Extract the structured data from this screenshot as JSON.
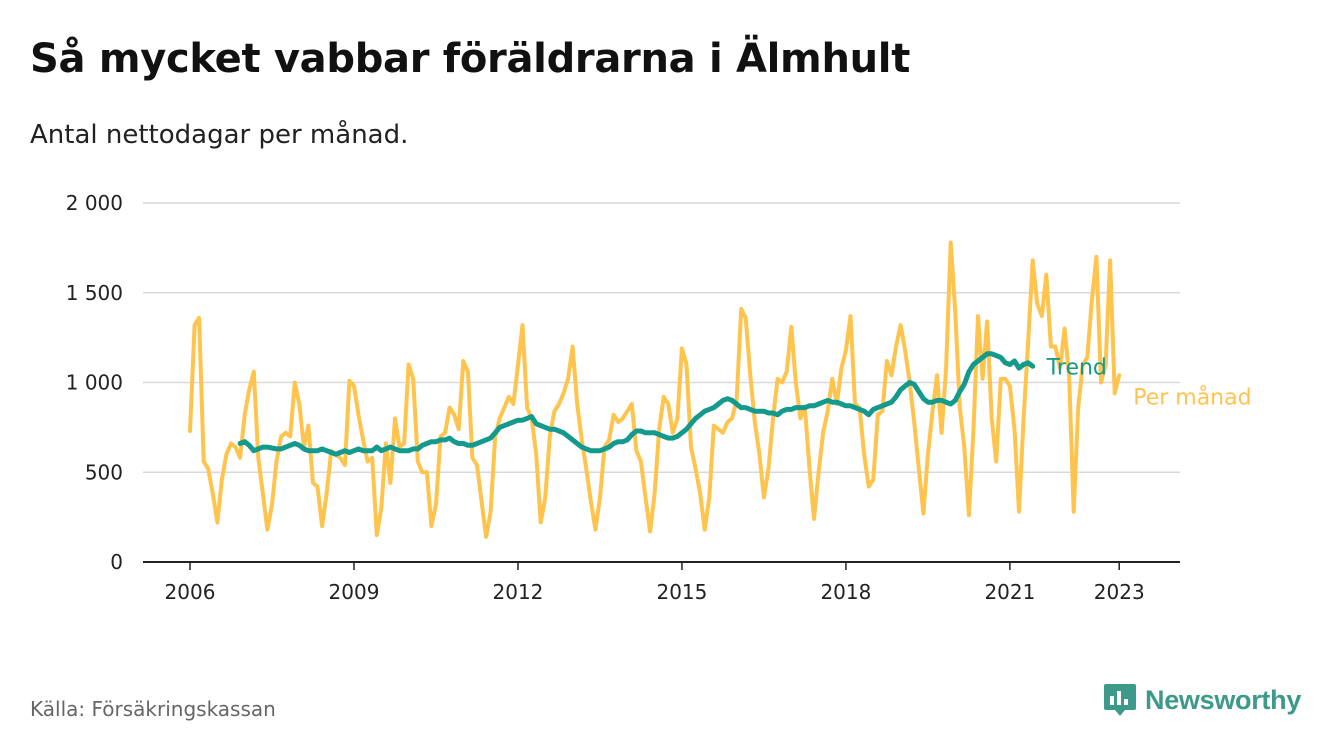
{
  "title": "Så mycket vabbar föräldrarna i Älmhult",
  "subtitle": "Antal nettodagar per månad.",
  "source": "Källa: Försäkringskassan",
  "brand": {
    "name": "Newsworthy",
    "icon": "bar-chart-speech-bubble-icon",
    "color": "#3d9a8a"
  },
  "chart_data": {
    "type": "line",
    "x_start": "2006-01",
    "frequency": "monthly",
    "x_ticks": [
      "2006",
      "2009",
      "2012",
      "2015",
      "2018",
      "2021",
      "2023"
    ],
    "y_ticks": [
      "0",
      "500",
      "1 000",
      "1 500",
      "2 000"
    ],
    "ylim": [
      0,
      2000
    ],
    "grid": true,
    "legend_position": "right, at line ends",
    "series": [
      {
        "name": "Per månad",
        "color": "#ffc44d",
        "values": [
          730,
          1320,
          1360,
          560,
          520,
          380,
          220,
          460,
          600,
          660,
          640,
          580,
          820,
          960,
          1060,
          580,
          380,
          180,
          320,
          560,
          700,
          720,
          700,
          1000,
          880,
          640,
          760,
          440,
          420,
          200,
          380,
          620,
          600,
          580,
          540,
          1010,
          980,
          820,
          680,
          560,
          580,
          150,
          300,
          660,
          440,
          800,
          640,
          660,
          1100,
          1020,
          560,
          500,
          500,
          200,
          320,
          700,
          720,
          860,
          820,
          740,
          1120,
          1060,
          580,
          540,
          340,
          140,
          280,
          700,
          800,
          860,
          920,
          880,
          1100,
          1320,
          860,
          800,
          600,
          220,
          360,
          700,
          840,
          880,
          940,
          1020,
          1200,
          880,
          680,
          520,
          340,
          180,
          360,
          640,
          680,
          820,
          780,
          800,
          840,
          880,
          620,
          560,
          360,
          170,
          380,
          740,
          920,
          880,
          720,
          800,
          1190,
          1100,
          640,
          520,
          380,
          180,
          360,
          760,
          740,
          720,
          780,
          800,
          900,
          1410,
          1360,
          1040,
          780,
          600,
          360,
          520,
          800,
          1020,
          1000,
          1060,
          1310,
          1000,
          800,
          860,
          520,
          240,
          500,
          720,
          840,
          1020,
          880,
          1080,
          1180,
          1370,
          880,
          860,
          600,
          420,
          460,
          820,
          840,
          1120,
          1040,
          1200,
          1320,
          1180,
          1000,
          780,
          520,
          270,
          600,
          840,
          1040,
          720,
          1080,
          1780,
          1400,
          860,
          640,
          260,
          740,
          1370,
          1020,
          1340,
          800,
          560,
          1020,
          1020,
          980,
          740,
          280,
          800,
          1220,
          1680,
          1440,
          1370,
          1600,
          1200,
          1200,
          1080,
          1300,
          1040,
          280,
          860,
          1100,
          1140,
          1460,
          1700,
          1000,
          1100,
          1680,
          940,
          1040
        ]
      },
      {
        "name": "Trend",
        "color": "#139a8d",
        "start_index": 11,
        "values": [
          660,
          670,
          650,
          620,
          630,
          640,
          640,
          635,
          630,
          630,
          640,
          650,
          660,
          650,
          630,
          620,
          620,
          620,
          630,
          620,
          610,
          600,
          610,
          620,
          610,
          620,
          630,
          620,
          620,
          620,
          640,
          620,
          630,
          640,
          630,
          620,
          620,
          620,
          630,
          630,
          650,
          660,
          670,
          670,
          680,
          680,
          690,
          670,
          660,
          660,
          650,
          650,
          660,
          670,
          680,
          690,
          720,
          750,
          760,
          770,
          780,
          790,
          790,
          800,
          810,
          770,
          760,
          750,
          740,
          740,
          730,
          720,
          700,
          680,
          660,
          640,
          630,
          620,
          620,
          620,
          630,
          640,
          660,
          670,
          670,
          680,
          710,
          730,
          730,
          720,
          720,
          720,
          710,
          700,
          690,
          690,
          700,
          720,
          740,
          770,
          800,
          820,
          840,
          850,
          860,
          880,
          900,
          910,
          900,
          880,
          860,
          860,
          850,
          840,
          840,
          840,
          830,
          830,
          820,
          840,
          850,
          850,
          860,
          860,
          860,
          870,
          870,
          880,
          890,
          900,
          890,
          890,
          880,
          870,
          870,
          860,
          850,
          840,
          820,
          850,
          860,
          870,
          880,
          890,
          920,
          960,
          980,
          1000,
          990,
          950,
          910,
          890,
          890,
          900,
          900,
          890,
          880,
          900,
          950,
          990,
          1060,
          1100,
          1120,
          1140,
          1160,
          1160,
          1150,
          1140,
          1110,
          1100,
          1120,
          1080,
          1100,
          1110,
          1090
        ]
      }
    ]
  }
}
